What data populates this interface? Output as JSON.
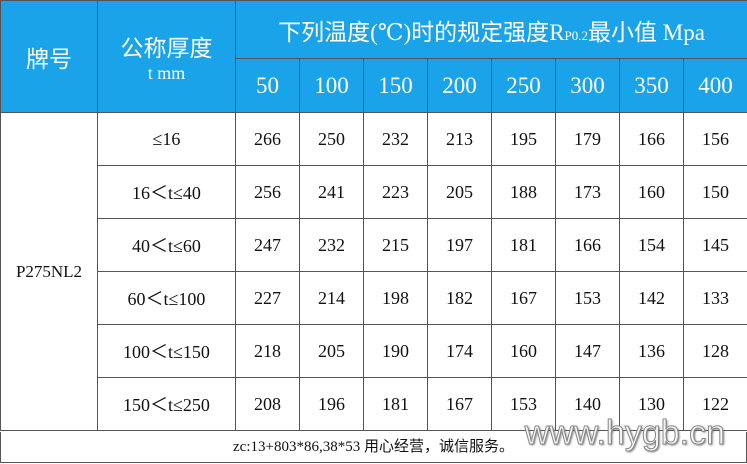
{
  "header": {
    "brand": "牌号",
    "thickness": [
      "公称厚度",
      "t mm"
    ],
    "temp_title": {
      "before": "下列温度(℃)时的规定强度",
      "symbol": "R",
      "subscript": "P0.2",
      "after": "最小值 Mpa"
    },
    "temperatures": [
      50,
      100,
      150,
      200,
      250,
      300,
      350,
      400
    ]
  },
  "table": {
    "brand": "P275NL2",
    "rows": [
      {
        "range": "≤16",
        "values": [
          266,
          250,
          232,
          213,
          195,
          179,
          166,
          156
        ]
      },
      {
        "range": "16＜t≤40",
        "values": [
          256,
          241,
          223,
          205,
          188,
          173,
          160,
          150
        ]
      },
      {
        "range": "40＜t≤60",
        "values": [
          247,
          232,
          215,
          197,
          181,
          166,
          154,
          145
        ]
      },
      {
        "range": "60＜t≤100",
        "values": [
          227,
          214,
          198,
          182,
          167,
          153,
          142,
          133
        ]
      },
      {
        "range": "100＜t≤150",
        "values": [
          218,
          205,
          190,
          174,
          160,
          147,
          136,
          128
        ]
      },
      {
        "range": "150＜t≤250",
        "values": [
          208,
          196,
          181,
          167,
          153,
          140,
          130,
          122
        ]
      }
    ]
  },
  "footer": {
    "note": "zc:13+803*86,38*53 用心经营，诚信服务。",
    "watermark": "www.hygb.cn"
  }
}
